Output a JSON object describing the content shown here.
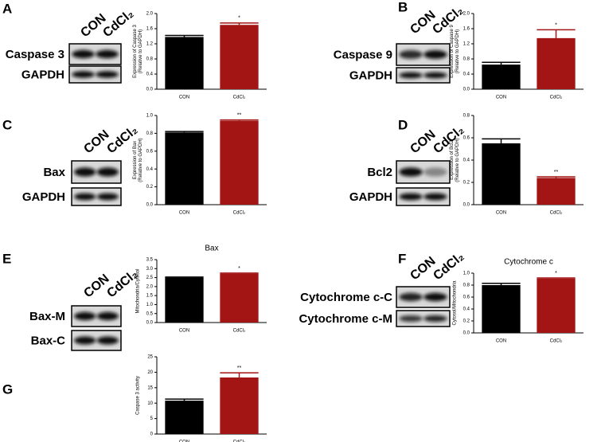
{
  "panels": [
    {
      "letter": "A",
      "lanes": [
        "CON",
        "CdCl₂"
      ],
      "bands": [
        "Caspase 3",
        "GAPDH"
      ]
    },
    {
      "letter": "B",
      "lanes": [
        "CON",
        "CdCl₂"
      ],
      "bands": [
        "Caspase 9",
        "GAPDH"
      ]
    },
    {
      "letter": "C",
      "lanes": [
        "CON",
        "CdCl₂"
      ],
      "bands": [
        "Bax",
        "GAPDH"
      ]
    },
    {
      "letter": "D",
      "lanes": [
        "CON",
        "CdCl₂"
      ],
      "bands": [
        "Bcl2",
        "GAPDH"
      ]
    },
    {
      "letter": "E",
      "lanes": [
        "CON",
        "CdCl₂"
      ],
      "bands": [
        "Bax-M",
        "Bax-C"
      ]
    },
    {
      "letter": "F",
      "lanes": [
        "CON",
        "CdCl₂"
      ],
      "bands": [
        "Cytochrome c-C",
        "Cytochrome c-M"
      ]
    },
    {
      "letter": "G"
    }
  ],
  "chart_data": [
    {
      "type": "bar",
      "ylabel": [
        "Expression of Caspase 3",
        "(Relative to GAPDH)"
      ],
      "categories": [
        "CON",
        "CdCl₂"
      ],
      "values": [
        1.38,
        1.7
      ],
      "errors": [
        0.04,
        0.05
      ],
      "colors": [
        "#000000",
        "#a31515"
      ],
      "ylim": [
        0,
        2
      ],
      "yticks": [
        {
          "value": 0,
          "label": "0.0"
        },
        0.4,
        0.8,
        1.2,
        1.6,
        {
          "value": 2,
          "label": "2.0"
        }
      ],
      "annotation": "*"
    },
    {
      "type": "bar",
      "ylabel": [
        "Expression of Caspase 9",
        "(Relative to GAPDH)"
      ],
      "categories": [
        "CON",
        "CdCl₂"
      ],
      "values": [
        0.65,
        1.35
      ],
      "errors": [
        0.06,
        0.22
      ],
      "colors": [
        "#000000",
        "#a31515"
      ],
      "ylim": [
        0,
        2
      ],
      "yticks": [
        {
          "value": 0,
          "label": "0.0"
        },
        0.4,
        0.8,
        1.2,
        1.6,
        {
          "value": 2,
          "label": "2.0"
        }
      ],
      "annotation": "*"
    },
    {
      "type": "bar",
      "ylabel": [
        "Expression of Bax",
        "(Relative to GAPDH)"
      ],
      "categories": [
        "CON",
        "CdCl₂"
      ],
      "values": [
        0.81,
        0.94
      ],
      "errors": [
        0.01,
        0.01
      ],
      "colors": [
        "#000000",
        "#a31515"
      ],
      "ylim": [
        0,
        1
      ],
      "yticks": [
        {
          "value": 0,
          "label": "0.0"
        },
        0.2,
        0.4,
        0.6,
        0.8,
        {
          "value": 1,
          "label": "1.0"
        }
      ],
      "annotation": "**"
    },
    {
      "type": "bar",
      "ylabel": [
        "Expression of Bcl2",
        "(Relative to GAPDH)"
      ],
      "categories": [
        "CON",
        "CdCl₂"
      ],
      "values": [
        0.55,
        0.24
      ],
      "errors": [
        0.04,
        0.01
      ],
      "colors": [
        "#000000",
        "#a31515"
      ],
      "ylim": [
        0,
        0.8
      ],
      "yticks": [
        {
          "value": 0,
          "label": "0.0"
        },
        0.2,
        0.4,
        0.6,
        0.8
      ],
      "annotation": "**"
    },
    {
      "type": "bar",
      "title": "Bax",
      "ylabel": [
        "Mitochondria/Cytosol"
      ],
      "categories": [
        "CON",
        "CdCl₂"
      ],
      "values": [
        2.5,
        2.72
      ],
      "errors": [
        0.03,
        0.03
      ],
      "colors": [
        "#000000",
        "#a31515"
      ],
      "ylim": [
        0,
        3.5
      ],
      "yticks": [
        {
          "value": 0,
          "label": "0.0"
        },
        0.5,
        {
          "value": 1,
          "label": "1.0"
        },
        1.5,
        {
          "value": 2,
          "label": "2.0"
        },
        2.5,
        {
          "value": 3,
          "label": "3.0"
        },
        3.5
      ],
      "annotation": "*"
    },
    {
      "type": "bar",
      "title": "Cytochrome c",
      "ylabel": [
        "Cytosol/Mitochondria"
      ],
      "categories": [
        "CON",
        "CdCl₂"
      ],
      "values": [
        0.8,
        0.91
      ],
      "errors": [
        0.03,
        0.01
      ],
      "colors": [
        "#000000",
        "#a31515"
      ],
      "ylim": [
        0,
        1
      ],
      "yticks": [
        {
          "value": 0,
          "label": "0.0"
        },
        0.2,
        0.4,
        0.6,
        0.8,
        {
          "value": 1,
          "label": "1.0"
        }
      ],
      "annotation": "*"
    },
    {
      "type": "bar",
      "ylabel": [
        "Caspase 3 activity"
      ],
      "categories": [
        "CON",
        "CdCl₂"
      ],
      "values": [
        10.8,
        18.3
      ],
      "errors": [
        0.5,
        1.5
      ],
      "colors": [
        "#000000",
        "#a31515"
      ],
      "ylim": [
        0,
        25
      ],
      "yticks": [
        0,
        5,
        10,
        15,
        20,
        25
      ],
      "annotation": "**"
    }
  ]
}
